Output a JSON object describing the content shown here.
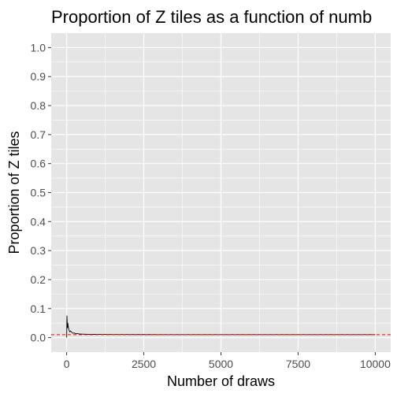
{
  "chart_data": {
    "type": "line",
    "title": "Proportion of Z tiles as a function of numb",
    "xlabel": "Number of draws",
    "ylabel": "Proportion of Z tiles",
    "xlim": [
      -500,
      10500
    ],
    "ylim": [
      -0.05,
      1.05
    ],
    "x_ticks": [
      0,
      2500,
      5000,
      7500,
      10000
    ],
    "x_tick_labels": [
      "0",
      "2500",
      "5000",
      "7500",
      "10000"
    ],
    "y_ticks": [
      0.0,
      0.1,
      0.2,
      0.3,
      0.4,
      0.5,
      0.6,
      0.7,
      0.8,
      0.9,
      1.0
    ],
    "y_tick_labels": [
      "0.0",
      "0.1",
      "0.2",
      "0.3",
      "0.4",
      "0.5",
      "0.6",
      "0.7",
      "0.8",
      "0.9",
      "1.0"
    ],
    "grid": true,
    "panel_background": "#e5e5e5",
    "grid_color": "#ffffff",
    "reference_line": {
      "y": 0.0102,
      "color": "#ff0000",
      "style": "dashed"
    },
    "series": [
      {
        "color": "#000000",
        "x": [
          1,
          10,
          20,
          30,
          40,
          50,
          60,
          80,
          100,
          130,
          160,
          200,
          250,
          300,
          350,
          400,
          500,
          600,
          700,
          800,
          900,
          1000,
          1200,
          1500,
          2000,
          2500,
          3000,
          3500,
          4000,
          4500,
          5000,
          5500,
          6000,
          6500,
          7000,
          7500,
          8000,
          8500,
          9000,
          9500,
          10000
        ],
        "y": [
          0.0,
          0.076,
          0.05,
          0.033,
          0.05,
          0.04,
          0.033,
          0.025,
          0.02,
          0.023,
          0.019,
          0.015,
          0.016,
          0.013,
          0.014,
          0.0125,
          0.012,
          0.0117,
          0.0114,
          0.0113,
          0.0111,
          0.011,
          0.0108,
          0.0107,
          0.0105,
          0.0104,
          0.0103,
          0.0103,
          0.0103,
          0.0102,
          0.0102,
          0.0102,
          0.0102,
          0.0102,
          0.0102,
          0.0102,
          0.0102,
          0.0102,
          0.0102,
          0.0102,
          0.0102
        ]
      }
    ]
  }
}
